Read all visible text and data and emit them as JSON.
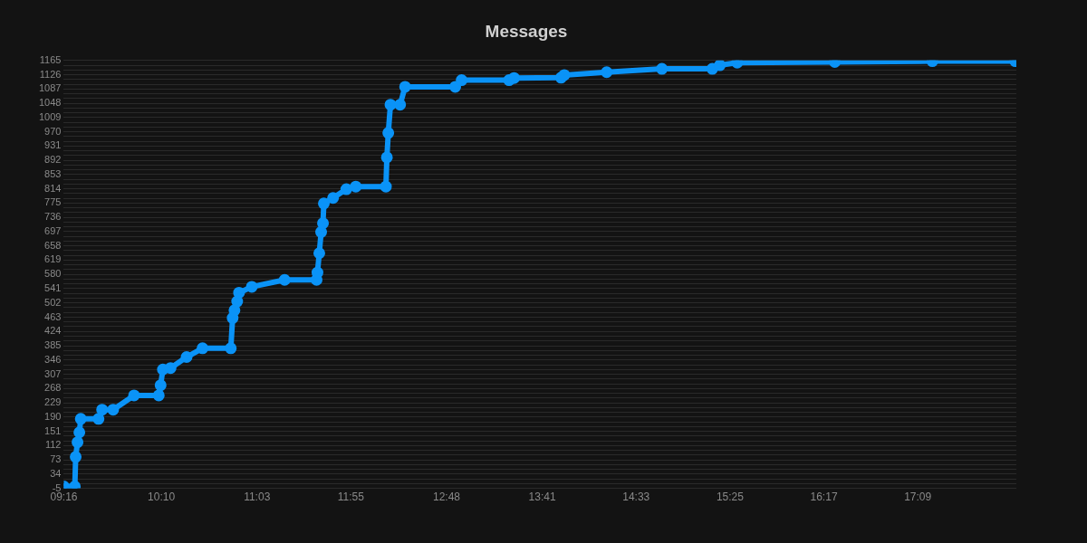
{
  "chart_data": {
    "type": "line",
    "title": "Messages",
    "legend": false,
    "grid": "y",
    "marker": "circle",
    "xlim": [
      9.2667,
      18.06
    ],
    "xticks": [
      {
        "value": 9.2667,
        "label": "09:16"
      },
      {
        "value": 10.1667,
        "label": "10:10"
      },
      {
        "value": 11.05,
        "label": "11:03"
      },
      {
        "value": 11.9167,
        "label": "11:55"
      },
      {
        "value": 12.8,
        "label": "12:48"
      },
      {
        "value": 13.6833,
        "label": "13:41"
      },
      {
        "value": 14.55,
        "label": "14:33"
      },
      {
        "value": 15.4167,
        "label": "15:25"
      },
      {
        "value": 16.2833,
        "label": "16:17"
      },
      {
        "value": 17.15,
        "label": "17:09"
      }
    ],
    "ylim": [
      -5,
      1165
    ],
    "yticks": [
      -5,
      {
        "value": 8,
        "label": null
      },
      {
        "value": 21,
        "label": null
      },
      34,
      {
        "value": 47,
        "label": null
      },
      {
        "value": 60,
        "label": null
      },
      73,
      {
        "value": 86,
        "label": null
      },
      {
        "value": 99,
        "label": null
      },
      112,
      {
        "value": 125,
        "label": null
      },
      {
        "value": 138,
        "label": null
      },
      151,
      {
        "value": 164,
        "label": null
      },
      {
        "value": 177,
        "label": null
      },
      190,
      {
        "value": 203,
        "label": null
      },
      {
        "value": 216,
        "label": null
      },
      229,
      {
        "value": 242,
        "label": null
      },
      {
        "value": 255,
        "label": null
      },
      268,
      {
        "value": 281,
        "label": null
      },
      {
        "value": 294,
        "label": null
      },
      307,
      {
        "value": 320,
        "label": null
      },
      {
        "value": 333,
        "label": null
      },
      346,
      {
        "value": 359,
        "label": null
      },
      {
        "value": 372,
        "label": null
      },
      385,
      {
        "value": 398,
        "label": null
      },
      {
        "value": 411,
        "label": null
      },
      424,
      {
        "value": 437,
        "label": null
      },
      {
        "value": 450,
        "label": null
      },
      463,
      {
        "value": 476,
        "label": null
      },
      {
        "value": 489,
        "label": null
      },
      502,
      {
        "value": 515,
        "label": null
      },
      {
        "value": 528,
        "label": null
      },
      541,
      {
        "value": 554,
        "label": null
      },
      {
        "value": 567,
        "label": null
      },
      580,
      {
        "value": 593,
        "label": null
      },
      {
        "value": 606,
        "label": null
      },
      619,
      {
        "value": 632,
        "label": null
      },
      {
        "value": 645,
        "label": null
      },
      658,
      {
        "value": 671,
        "label": null
      },
      {
        "value": 684,
        "label": null
      },
      697,
      {
        "value": 710,
        "label": null
      },
      {
        "value": 723,
        "label": null
      },
      736,
      {
        "value": 749,
        "label": null
      },
      {
        "value": 762,
        "label": null
      },
      775,
      {
        "value": 788,
        "label": null
      },
      {
        "value": 801,
        "label": null
      },
      814,
      {
        "value": 827,
        "label": null
      },
      {
        "value": 840,
        "label": null
      },
      853,
      {
        "value": 866,
        "label": null
      },
      {
        "value": 879,
        "label": null
      },
      892,
      {
        "value": 905,
        "label": null
      },
      {
        "value": 918,
        "label": null
      },
      931,
      {
        "value": 944,
        "label": null
      },
      {
        "value": 957,
        "label": null
      },
      970,
      {
        "value": 983,
        "label": null
      },
      {
        "value": 996,
        "label": null
      },
      1009,
      {
        "value": 1022,
        "label": null
      },
      {
        "value": 1035,
        "label": null
      },
      1048,
      {
        "value": 1061,
        "label": null
      },
      {
        "value": 1074,
        "label": null
      },
      1087,
      {
        "value": 1100,
        "label": null
      },
      {
        "value": 1113,
        "label": null
      },
      1126,
      {
        "value": 1139,
        "label": null
      },
      {
        "value": 1152,
        "label": null
      },
      1165
    ],
    "series": [
      {
        "color": "#0a93f7",
        "x": [
          9.267,
          9.368,
          9.376,
          9.393,
          9.41,
          9.423,
          9.587,
          9.62,
          9.722,
          9.915,
          10.143,
          10.16,
          10.181,
          10.252,
          10.4,
          10.547,
          10.808,
          10.825,
          10.842,
          10.867,
          10.884,
          11.002,
          11.305,
          11.6,
          11.608,
          11.625,
          11.642,
          11.659,
          11.667,
          11.752,
          11.875,
          11.962,
          12.24,
          12.249,
          12.262,
          12.282,
          12.371,
          12.417,
          12.88,
          12.939,
          13.377,
          13.423,
          13.857,
          13.887,
          14.278,
          14.788,
          15.253,
          15.323,
          15.483,
          16.384,
          17.285,
          18.05
        ],
        "values": [
          0,
          0,
          81,
          121,
          148,
          185,
          185,
          210,
          210,
          249,
          249,
          277,
          320,
          324,
          354,
          378,
          378,
          461,
          482,
          506,
          530,
          546,
          565,
          565,
          585,
          638,
          696,
          720,
          774,
          789,
          813,
          820,
          820,
          900,
          967,
          1044,
          1044,
          1093,
          1093,
          1111,
          1111,
          1117,
          1118,
          1125,
          1133,
          1142,
          1142,
          1152,
          1159,
          1161,
          1163,
          1163
        ]
      }
    ]
  }
}
